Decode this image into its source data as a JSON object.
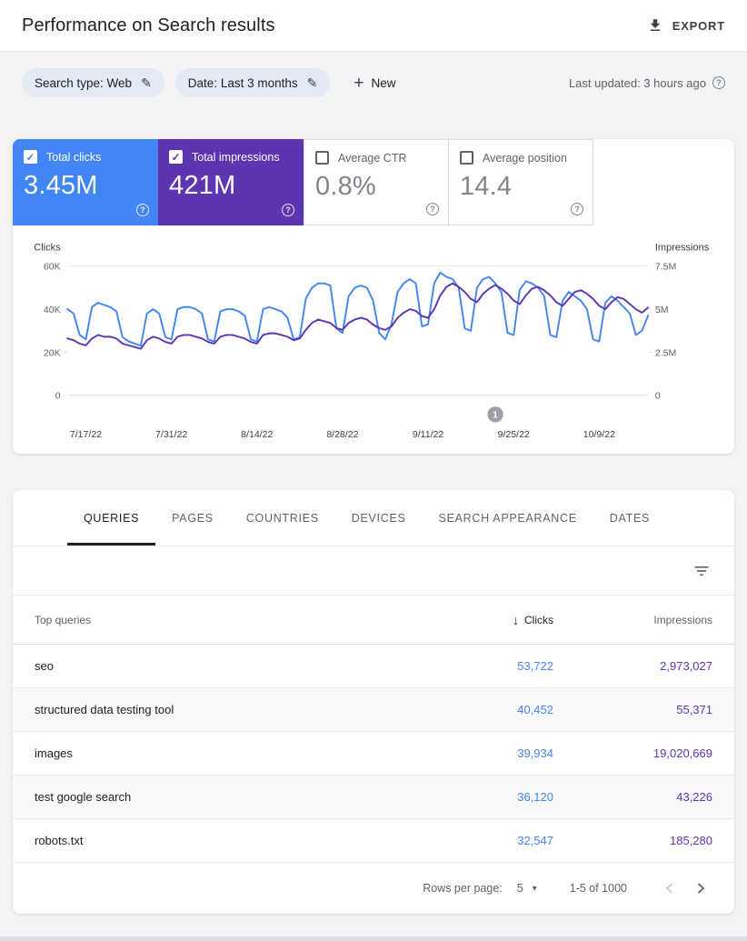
{
  "header": {
    "title": "Performance on Search results",
    "export_label": "EXPORT"
  },
  "filter_bar": {
    "search_type_chip": "Search type: Web",
    "date_chip": "Date: Last 3 months",
    "new_button": "New",
    "last_updated": "Last updated: 3 hours ago"
  },
  "icons": {
    "check": "✓",
    "pencil": "✎",
    "plus": "+",
    "help": "?",
    "sort_desc": "↓",
    "dropdown": "▾"
  },
  "metrics": {
    "clicks": {
      "label": "Total clicks",
      "value": "3.45M",
      "checked": true,
      "color": "#4285f4"
    },
    "impressions": {
      "label": "Total impressions",
      "value": "421M",
      "checked": true,
      "color": "#5e35b1"
    },
    "ctr": {
      "label": "Average CTR",
      "value": "0.8%",
      "checked": false
    },
    "position": {
      "label": "Average position",
      "value": "14.4",
      "checked": false
    }
  },
  "chart_data": {
    "type": "line",
    "left_axis": {
      "label": "Clicks",
      "ticks": [
        "60K",
        "40K",
        "20K",
        "0"
      ],
      "max": 60,
      "unit": "thousands of clicks per day"
    },
    "right_axis": {
      "label": "Impressions",
      "ticks": [
        "7.5M",
        "5M",
        "2.5M",
        "0"
      ],
      "max": 7.5,
      "unit": "millions of impressions per day"
    },
    "x_tick_labels": [
      "7/17/22",
      "7/31/22",
      "8/14/22",
      "8/28/22",
      "9/11/22",
      "9/25/22",
      "10/9/22"
    ],
    "x_tick_indices": [
      3,
      17,
      31,
      45,
      59,
      73,
      87
    ],
    "annotation": {
      "label": "1",
      "index": 70
    },
    "grid": "top gridline and zero baseline only",
    "legend": "none (series indicated by metric tiles)",
    "series": [
      {
        "name": "Clicks",
        "axis": "left",
        "color": "#4285f4",
        "values": [
          40,
          38,
          28,
          26,
          41,
          43,
          42,
          41,
          39,
          27,
          25,
          24,
          23,
          38,
          40,
          38,
          27,
          26,
          40,
          41,
          41,
          40,
          38,
          26,
          25,
          39,
          40,
          40,
          39,
          37,
          26,
          25,
          40,
          41,
          40,
          39,
          36,
          26,
          27,
          45,
          50,
          52,
          52,
          51,
          31,
          29,
          46,
          50,
          51,
          50,
          44,
          29,
          26,
          33,
          48,
          52,
          54,
          52,
          32,
          33,
          52,
          57,
          55,
          54,
          50,
          31,
          30,
          50,
          54,
          55,
          52,
          48,
          29,
          28,
          49,
          53,
          52,
          50,
          46,
          28,
          27,
          44,
          48,
          46,
          44,
          40,
          26,
          25,
          43,
          46,
          44,
          41,
          38,
          28,
          30,
          37
        ]
      },
      {
        "name": "Impressions",
        "axis": "right",
        "color": "#5e35b1",
        "values": [
          3.3,
          3.2,
          3.0,
          2.9,
          3.3,
          3.5,
          3.4,
          3.4,
          3.3,
          3.0,
          2.9,
          2.8,
          2.7,
          3.2,
          3.4,
          3.3,
          3.1,
          3.0,
          3.4,
          3.5,
          3.5,
          3.4,
          3.3,
          3.1,
          3.0,
          3.4,
          3.5,
          3.5,
          3.4,
          3.3,
          3.1,
          3.0,
          3.5,
          3.6,
          3.6,
          3.5,
          3.4,
          3.2,
          3.3,
          3.8,
          4.2,
          4.4,
          4.3,
          4.2,
          3.9,
          3.8,
          4.2,
          4.4,
          4.5,
          4.4,
          4.1,
          3.9,
          3.8,
          4.0,
          4.5,
          4.8,
          5.0,
          4.9,
          4.6,
          4.5,
          5.0,
          5.8,
          6.3,
          6.5,
          6.3,
          6.0,
          5.6,
          5.4,
          5.9,
          6.2,
          6.4,
          6.2,
          5.9,
          5.5,
          5.3,
          5.8,
          6.2,
          6.3,
          6.1,
          5.8,
          5.4,
          5.2,
          5.6,
          6.0,
          6.1,
          5.9,
          5.6,
          5.2,
          5.0,
          5.4,
          5.7,
          5.6,
          5.3,
          5.0,
          4.8,
          5.1
        ]
      }
    ]
  },
  "table": {
    "tabs": [
      "QUERIES",
      "PAGES",
      "COUNTRIES",
      "DEVICES",
      "SEARCH APPEARANCE",
      "DATES"
    ],
    "active_tab": "QUERIES",
    "columns": {
      "query": "Top queries",
      "clicks": "Clicks",
      "impressions": "Impressions"
    },
    "rows": [
      {
        "query": "seo",
        "clicks": "53,722",
        "impressions": "2,973,027"
      },
      {
        "query": "structured data testing tool",
        "clicks": "40,452",
        "impressions": "55,371"
      },
      {
        "query": "images",
        "clicks": "39,934",
        "impressions": "19,020,669"
      },
      {
        "query": "test google search",
        "clicks": "36,120",
        "impressions": "43,226"
      },
      {
        "query": "robots.txt",
        "clicks": "32,547",
        "impressions": "185,280"
      }
    ],
    "pagination": {
      "rows_per_page_label": "Rows per page:",
      "rows_per_page": "5",
      "range": "1-5 of 1000"
    }
  },
  "colors": {
    "clicks_blue": "#4285f4",
    "impressions_purple": "#5e35b1",
    "page_background": "#f1f3f4",
    "annotation_gray": "#9aa0a6"
  }
}
